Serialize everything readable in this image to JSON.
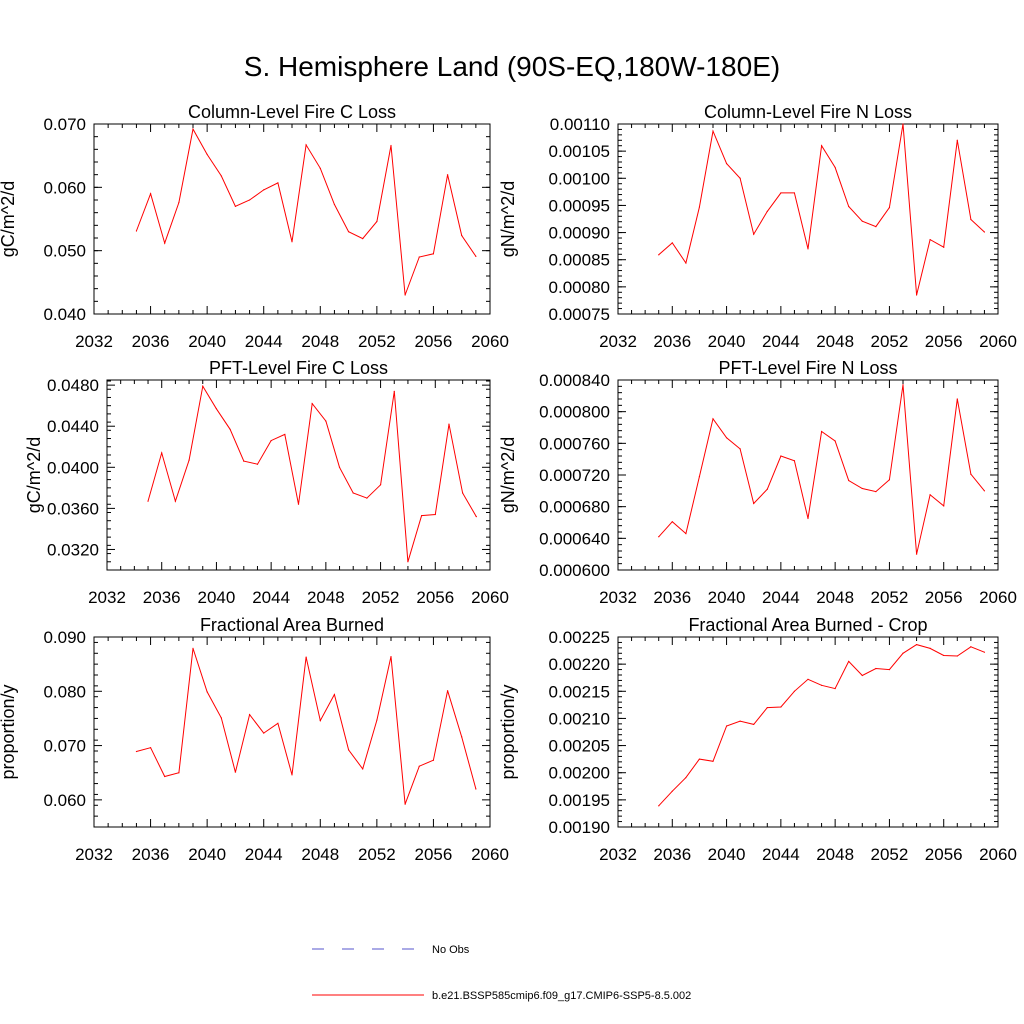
{
  "figure": {
    "title": "S. Hemisphere Land (90S-EQ,180W-180E)"
  },
  "colors": {
    "model": "#ff0000",
    "obs": "#5555cc",
    "axis": "#000000"
  },
  "legend": {
    "entries": [
      {
        "label": "No Obs",
        "style": "dashed",
        "color": "#5555cc"
      },
      {
        "label": "b.e21.BSSP585cmip6.f09_g17.CMIP6-SSP5-8.5.002",
        "style": "solid",
        "color": "#ff0000"
      }
    ]
  },
  "chart_data": [
    {
      "type": "line",
      "title": "Column-Level Fire C Loss",
      "ylabel": "gC/m^2/d",
      "xlim": [
        2032,
        2060
      ],
      "ylim": [
        0.04,
        0.07
      ],
      "xticks": [
        "2032",
        "2036",
        "2040",
        "2044",
        "2048",
        "2052",
        "2056",
        "2060"
      ],
      "yticks": [
        "0.040",
        "0.050",
        "0.060",
        "0.070"
      ],
      "series": [
        {
          "x": [
            2035,
            2036,
            2037,
            2038,
            2039,
            2040,
            2041,
            2042,
            2043,
            2044,
            2045,
            2046,
            2047,
            2048,
            2049,
            2050,
            2051,
            2052,
            2053,
            2054,
            2055,
            2056,
            2057,
            2058,
            2059
          ],
          "values": [
            0.0531,
            0.059,
            0.0512,
            0.0576,
            0.0692,
            0.0652,
            0.0618,
            0.057,
            0.058,
            0.0596,
            0.0607,
            0.0514,
            0.0667,
            0.063,
            0.0573,
            0.053,
            0.0519,
            0.0546,
            0.0666,
            0.043,
            0.049,
            0.0495,
            0.062,
            0.0524,
            0.0491
          ]
        }
      ]
    },
    {
      "type": "line",
      "title": "Column-Level Fire N Loss",
      "ylabel": "gN/m^2/d",
      "xlim": [
        2032,
        2060
      ],
      "ylim": [
        0.00075,
        0.0011
      ],
      "xticks": [
        "2032",
        "2036",
        "2040",
        "2044",
        "2048",
        "2052",
        "2056",
        "2060"
      ],
      "yticks": [
        "0.00075",
        "0.00080",
        "0.00085",
        "0.00090",
        "0.00095",
        "0.00100",
        "0.00105",
        "0.00110"
      ],
      "series": [
        {
          "x": [
            2035,
            2036,
            2037,
            2038,
            2039,
            2040,
            2041,
            2042,
            2043,
            2044,
            2045,
            2046,
            2047,
            2048,
            2049,
            2050,
            2051,
            2052,
            2053,
            2054,
            2055,
            2056,
            2057,
            2058,
            2059
          ],
          "values": [
            0.000859,
            0.000881,
            0.000844,
            0.000947,
            0.001087,
            0.001027,
            0.001,
            0.000897,
            0.000939,
            0.000973,
            0.000973,
            0.00087,
            0.00106,
            0.00102,
            0.000948,
            0.000921,
            0.000911,
            0.000946,
            0.0011,
            0.000785,
            0.000887,
            0.000873,
            0.00107,
            0.000924,
            0.000901
          ]
        }
      ]
    },
    {
      "type": "line",
      "title": "PFT-Level Fire C Loss",
      "ylabel": "gC/m^2/d",
      "xlim": [
        2032,
        2060
      ],
      "ylim": [
        0.03,
        0.0485
      ],
      "xticks": [
        "2032",
        "2036",
        "2040",
        "2044",
        "2048",
        "2052",
        "2056",
        "2060"
      ],
      "yticks": [
        "0.0320",
        "0.0360",
        "0.0400",
        "0.0440",
        "0.0480"
      ],
      "series": [
        {
          "x": [
            2035,
            2036,
            2037,
            2038,
            2039,
            2040,
            2041,
            2042,
            2043,
            2044,
            2045,
            2046,
            2047,
            2048,
            2049,
            2050,
            2051,
            2052,
            2053,
            2054,
            2055,
            2056,
            2057,
            2058,
            2059
          ],
          "values": [
            0.0367,
            0.0414,
            0.0367,
            0.0407,
            0.0479,
            0.0457,
            0.0437,
            0.0406,
            0.0403,
            0.0426,
            0.0432,
            0.0364,
            0.0462,
            0.0445,
            0.04,
            0.0375,
            0.037,
            0.0383,
            0.0474,
            0.0308,
            0.0353,
            0.0354,
            0.0442,
            0.0375,
            0.0352
          ]
        }
      ]
    },
    {
      "type": "line",
      "title": "PFT-Level Fire N Loss",
      "ylabel": "gN/m^2/d",
      "xlim": [
        2032,
        2060
      ],
      "ylim": [
        0.0006,
        0.00084
      ],
      "xticks": [
        "2032",
        "2036",
        "2040",
        "2044",
        "2048",
        "2052",
        "2056",
        "2060"
      ],
      "yticks": [
        "0.000600",
        "0.000640",
        "0.000680",
        "0.000720",
        "0.000760",
        "0.000800",
        "0.000840"
      ],
      "series": [
        {
          "x": [
            2035,
            2036,
            2037,
            2038,
            2039,
            2040,
            2041,
            2042,
            2043,
            2044,
            2045,
            2046,
            2047,
            2048,
            2049,
            2050,
            2051,
            2052,
            2053,
            2054,
            2055,
            2056,
            2057,
            2058,
            2059
          ],
          "values": [
            0.000642,
            0.000661,
            0.000646,
            0.000718,
            0.000791,
            0.000767,
            0.000753,
            0.000684,
            0.000702,
            0.000744,
            0.000738,
            0.000665,
            0.000775,
            0.000763,
            0.000713,
            0.000703,
            0.000699,
            0.000714,
            0.000834,
            0.00062,
            0.000695,
            0.000681,
            0.000816,
            0.000721,
            0.0007
          ]
        }
      ]
    },
    {
      "type": "line",
      "title": "Fractional Area Burned",
      "ylabel": "proportion/y",
      "xlim": [
        2032,
        2060
      ],
      "ylim": [
        0.055,
        0.09
      ],
      "xticks": [
        "2032",
        "2036",
        "2040",
        "2044",
        "2048",
        "2052",
        "2056",
        "2060"
      ],
      "yticks": [
        "0.060",
        "0.070",
        "0.080",
        "0.090"
      ],
      "series": [
        {
          "x": [
            2035,
            2036,
            2037,
            2038,
            2039,
            2040,
            2041,
            2042,
            2043,
            2044,
            2045,
            2046,
            2047,
            2048,
            2049,
            2050,
            2051,
            2052,
            2053,
            2054,
            2055,
            2056,
            2057,
            2058,
            2059
          ],
          "values": [
            0.0689,
            0.0696,
            0.0643,
            0.065,
            0.0879,
            0.0799,
            0.0751,
            0.0651,
            0.0757,
            0.0723,
            0.0741,
            0.0646,
            0.0863,
            0.0746,
            0.0794,
            0.0692,
            0.0657,
            0.0747,
            0.0864,
            0.0592,
            0.0662,
            0.0673,
            0.0801,
            0.0716,
            0.062
          ]
        }
      ]
    },
    {
      "type": "line",
      "title": "Fractional Area Burned - Crop",
      "ylabel": "proportion/y",
      "xlim": [
        2032,
        2060
      ],
      "ylim": [
        0.0019,
        0.00225
      ],
      "xticks": [
        "2032",
        "2036",
        "2040",
        "2044",
        "2048",
        "2052",
        "2056",
        "2060"
      ],
      "yticks": [
        "0.00190",
        "0.00195",
        "0.00200",
        "0.00205",
        "0.00210",
        "0.00215",
        "0.00220",
        "0.00225"
      ],
      "series": [
        {
          "x": [
            2035,
            2036,
            2037,
            2038,
            2039,
            2040,
            2041,
            2042,
            2043,
            2044,
            2045,
            2046,
            2047,
            2048,
            2049,
            2050,
            2051,
            2052,
            2053,
            2054,
            2055,
            2056,
            2057,
            2058,
            2059
          ],
          "values": [
            0.001939,
            0.001966,
            0.001991,
            0.002025,
            0.002021,
            0.002086,
            0.002095,
            0.002089,
            0.00212,
            0.002121,
            0.00215,
            0.002172,
            0.002161,
            0.002155,
            0.002205,
            0.002179,
            0.002192,
            0.00219,
            0.00222,
            0.002236,
            0.002229,
            0.002216,
            0.002215,
            0.002232,
            0.002222
          ]
        }
      ]
    }
  ]
}
